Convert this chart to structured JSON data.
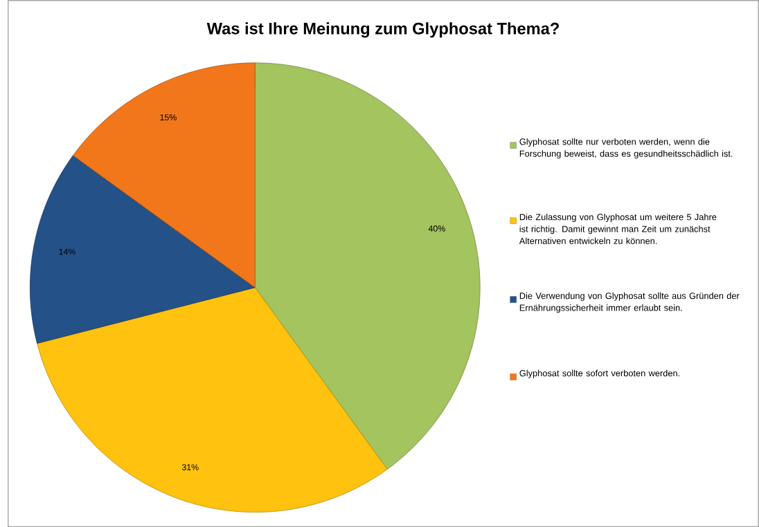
{
  "chart_data": {
    "type": "pie",
    "title": "Was ist Ihre Meinung zum Glyphosat Thema?",
    "categories": [
      "Glyphosat sollte nur verboten werden, wenn die Forschung beweist, dass es gesundheitsschädlich ist.",
      "Die Zulassung von Glyphosat um weitere 5 Jahre ist richtig. Damit gewinnt man Zeit um zunächst Alternativen entwickeln zu können.",
      "Die Verwendung von Glyphosat sollte aus Gründen der Ernährungssicherheit immer erlaubt sein.",
      "Glyphosat sollte sofort verboten werden."
    ],
    "values": [
      40,
      31,
      14,
      15
    ],
    "value_labels": [
      "40%",
      "31%",
      "14%",
      "15%"
    ],
    "colors": [
      "#a3c45e",
      "#ffc20e",
      "#245188",
      "#f2771a"
    ],
    "legend": "right"
  }
}
